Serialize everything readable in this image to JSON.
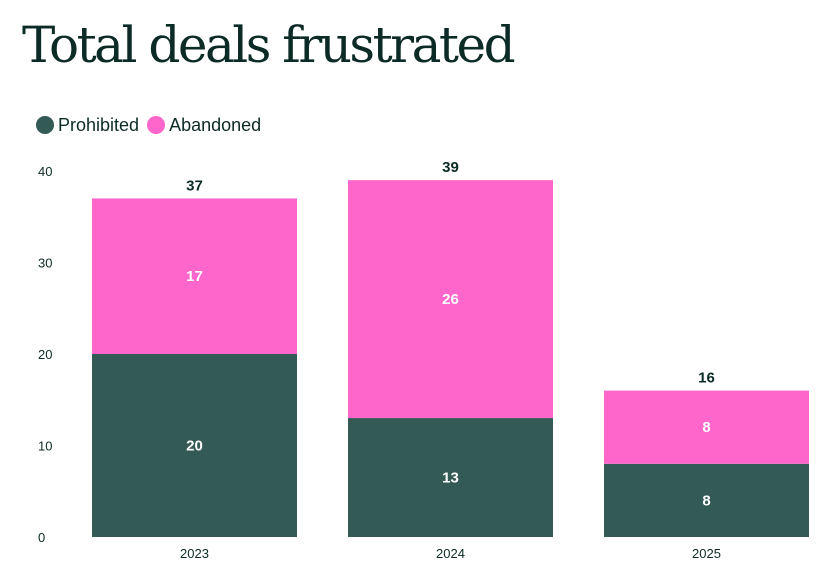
{
  "chart_data": {
    "type": "bar",
    "stacked": true,
    "title": "Total deals frustrated",
    "xlabel": "",
    "ylabel": "",
    "ylim": [
      0,
      40
    ],
    "yticks": [
      0,
      10,
      20,
      30,
      40
    ],
    "categories": [
      "2023",
      "2024",
      "2025"
    ],
    "series": [
      {
        "name": "Prohibited",
        "color": "#335a55",
        "values": [
          20,
          13,
          8
        ]
      },
      {
        "name": "Abandoned",
        "color": "#ff66cc",
        "values": [
          17,
          26,
          8
        ]
      }
    ],
    "totals": [
      37,
      39,
      16
    ],
    "legend_position": "top-left",
    "grid": false
  }
}
